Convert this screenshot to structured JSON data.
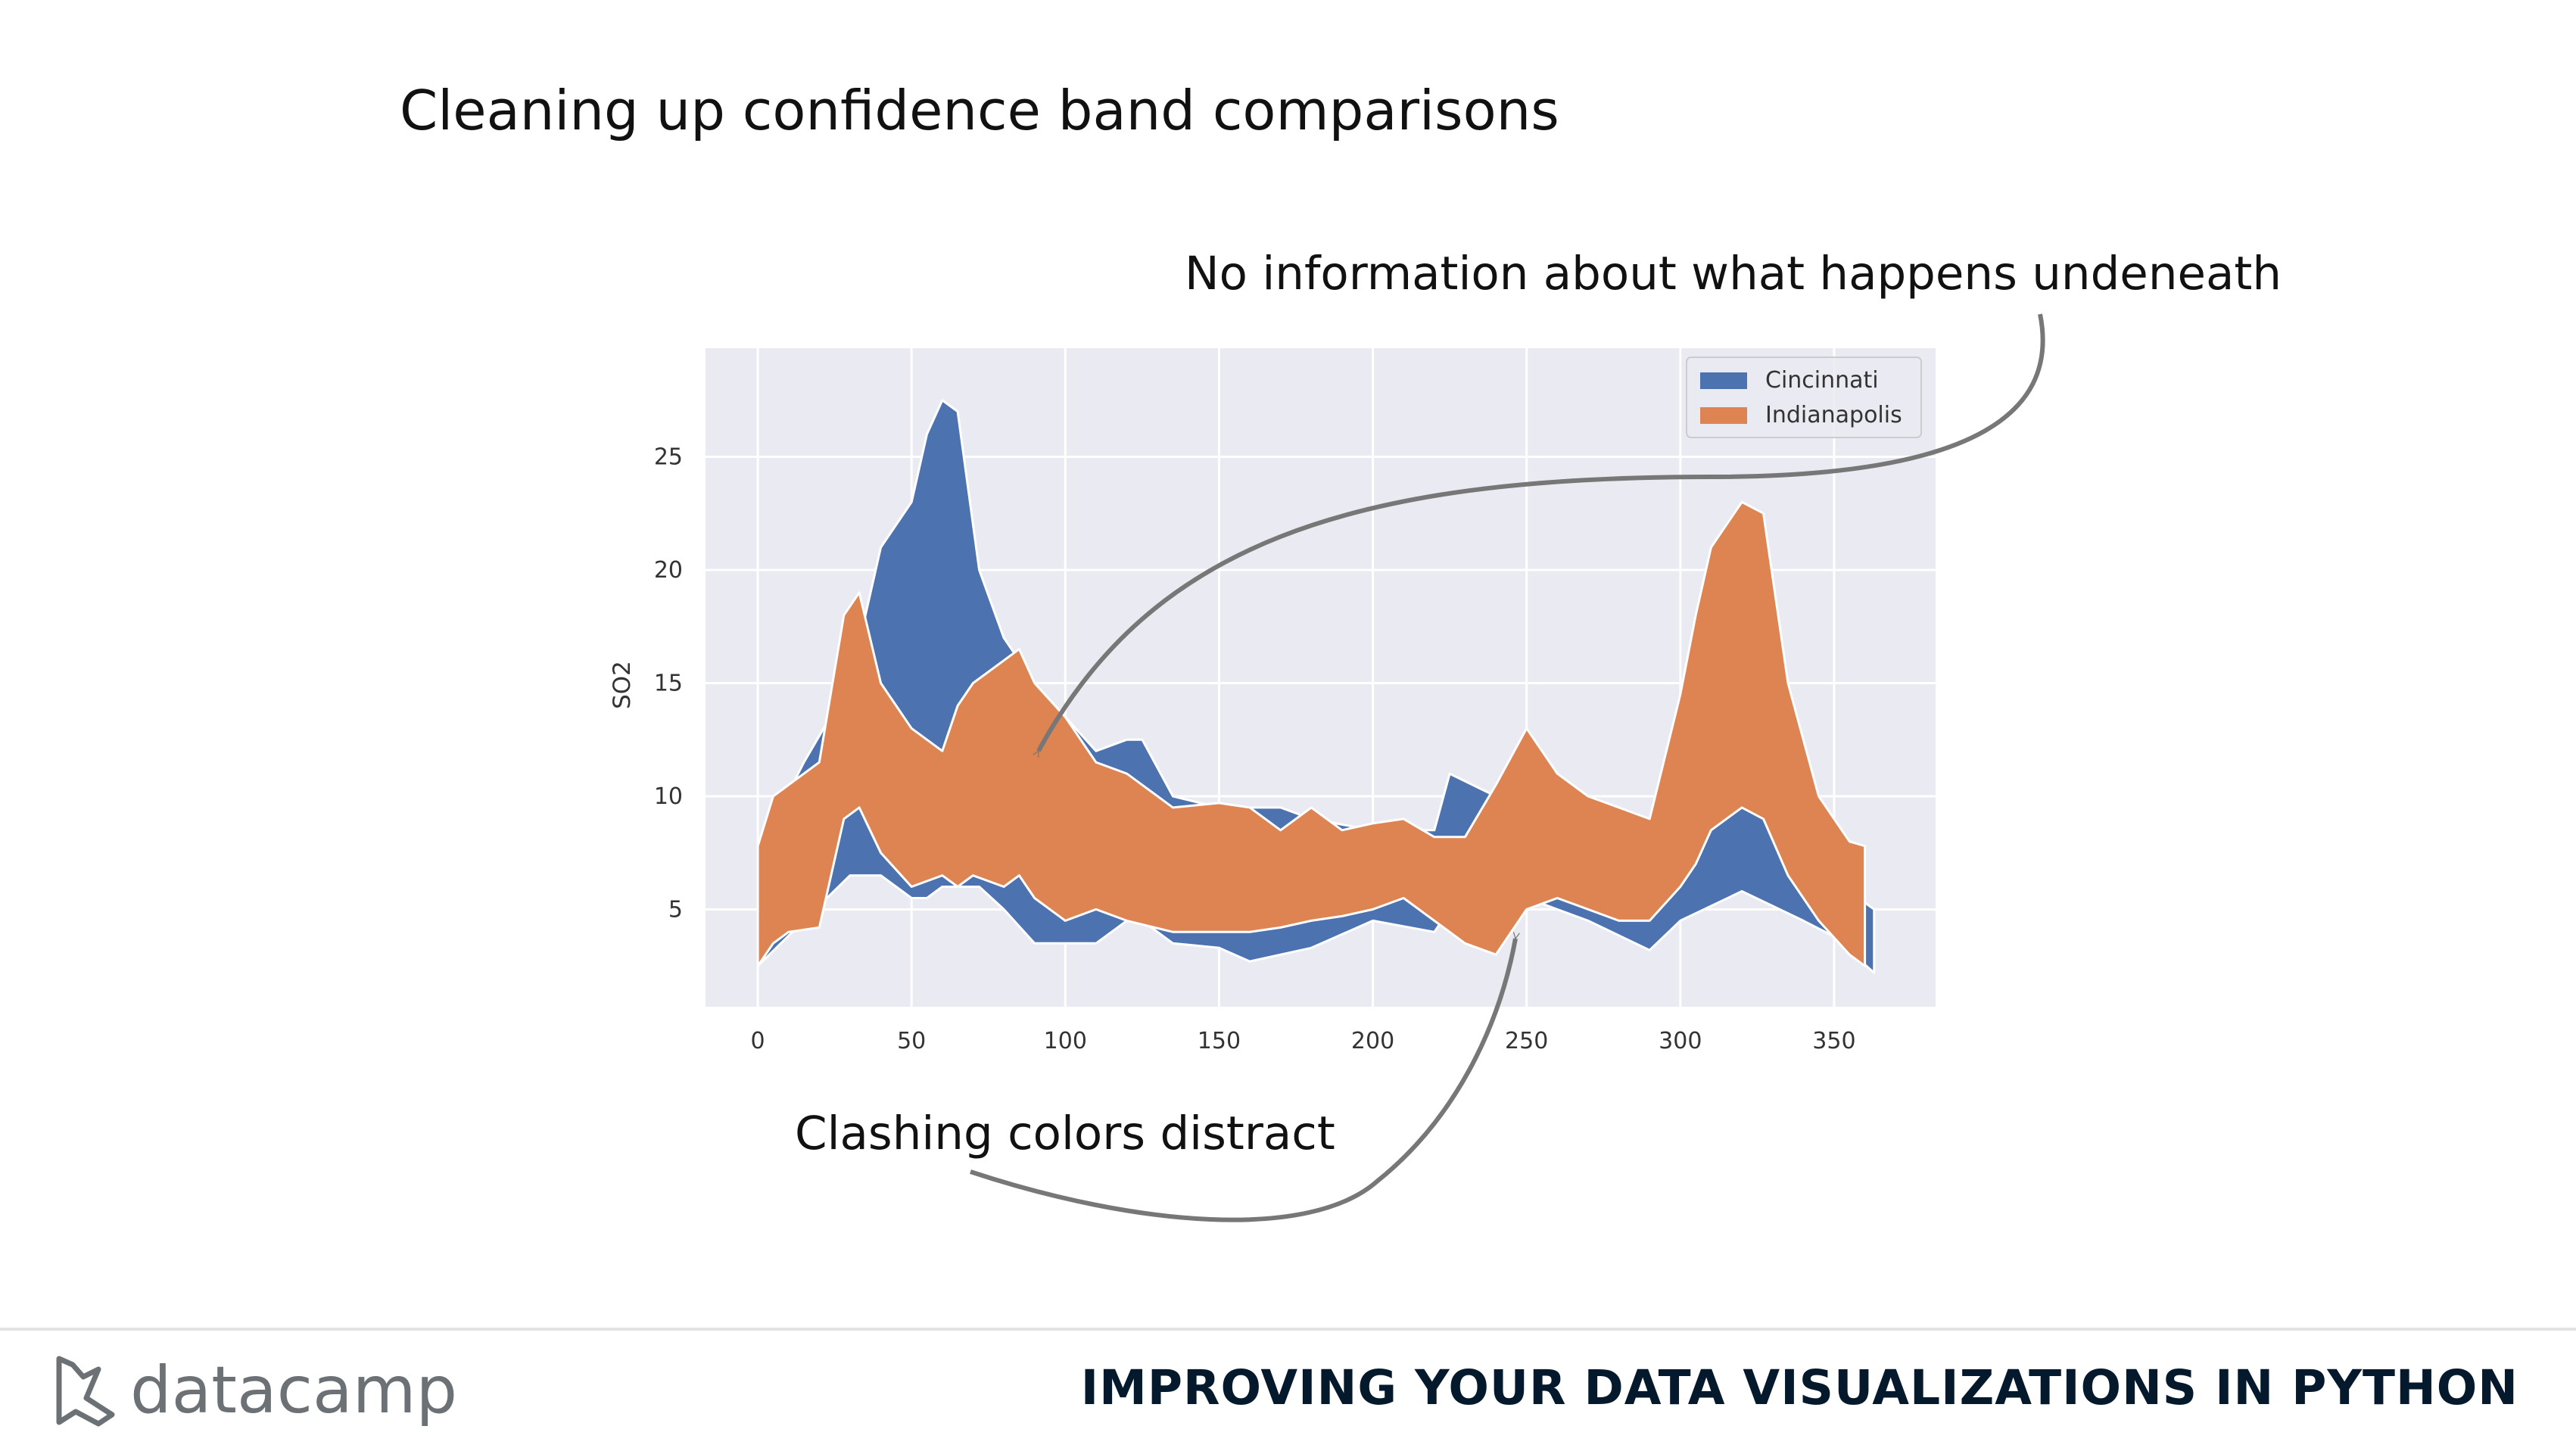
{
  "slide": {
    "title": "Cleaning up confidence band comparisons",
    "annotation_top": "No information about what happens undeneath",
    "annotation_bottom": "Clashing colors distract"
  },
  "footer": {
    "brand": "datacamp",
    "course": "IMPROVING YOUR DATA VISUALIZATIONS IN PYTHON"
  },
  "colors": {
    "plot_bg": "#eaeaf2",
    "grid": "#ffffff",
    "cincinnati": "#4c72b0",
    "indianapolis": "#dd8452",
    "arrow": "#777777"
  },
  "chart_data": {
    "type": "area",
    "xlabel": "",
    "ylabel": "SO2",
    "xlim": [
      -17,
      383
    ],
    "ylim": [
      0.7,
      29.8
    ],
    "xticks": [
      0,
      50,
      100,
      150,
      200,
      250,
      300,
      350
    ],
    "yticks": [
      5,
      10,
      15,
      20,
      25
    ],
    "grid": true,
    "legend": "upper-right",
    "series": [
      {
        "name": "Cincinnati",
        "x": [
          0,
          15,
          30,
          40,
          50,
          55,
          60,
          65,
          72,
          80,
          90,
          100,
          110,
          120,
          125,
          135,
          150,
          160,
          170,
          180,
          200,
          220,
          225,
          240,
          250,
          270,
          290,
          300,
          320,
          340,
          350,
          358,
          363
        ],
        "upper": [
          7.5,
          11.5,
          15,
          21,
          23,
          26,
          27.5,
          27,
          20,
          17,
          15,
          13.5,
          12,
          12.5,
          12.5,
          10,
          9.5,
          9.5,
          9.5,
          9,
          8.5,
          8.5,
          11,
          10,
          12,
          9,
          8.5,
          11,
          11.5,
          8.5,
          7,
          5.5,
          5
        ],
        "lower": [
          2.5,
          4.5,
          6.5,
          6.5,
          5.5,
          5.5,
          6,
          6,
          6,
          5,
          3.5,
          3.5,
          3.5,
          4.5,
          4.5,
          3.5,
          3.3,
          2.7,
          3,
          3.3,
          4.5,
          4,
          5,
          3.5,
          5.5,
          4.5,
          3.2,
          4.5,
          5.8,
          4.5,
          3.8,
          2.8,
          2.2
        ]
      },
      {
        "name": "Indianapolis",
        "x": [
          0,
          5,
          10,
          20,
          28,
          33,
          40,
          50,
          60,
          65,
          70,
          80,
          85,
          90,
          100,
          110,
          120,
          135,
          150,
          160,
          170,
          180,
          190,
          200,
          210,
          220,
          230,
          240,
          250,
          260,
          270,
          280,
          290,
          300,
          305,
          310,
          320,
          327,
          335,
          345,
          355,
          360
        ],
        "upper": [
          7.8,
          10,
          10.5,
          11.5,
          18,
          19,
          15,
          13,
          12,
          14,
          15,
          16,
          16.5,
          15,
          13.5,
          11.5,
          11,
          9.5,
          9.7,
          9.5,
          8.5,
          9.5,
          8.5,
          8.8,
          9,
          8.2,
          8.2,
          10.5,
          13,
          11,
          10,
          9.5,
          9,
          14.5,
          18,
          21,
          23,
          22.5,
          15,
          10,
          8,
          7.8
        ],
        "lower": [
          2.5,
          3.5,
          4,
          4.2,
          9,
          9.5,
          7.5,
          6,
          6.5,
          6,
          6.5,
          6,
          6.5,
          5.5,
          4.5,
          5,
          4.5,
          4,
          4,
          4,
          4.2,
          4.5,
          4.7,
          5,
          5.5,
          4.5,
          3.5,
          3,
          5,
          5.5,
          5,
          4.5,
          4.5,
          6,
          7,
          8.5,
          9.5,
          9,
          6.5,
          4.5,
          3,
          2.5
        ]
      }
    ]
  }
}
